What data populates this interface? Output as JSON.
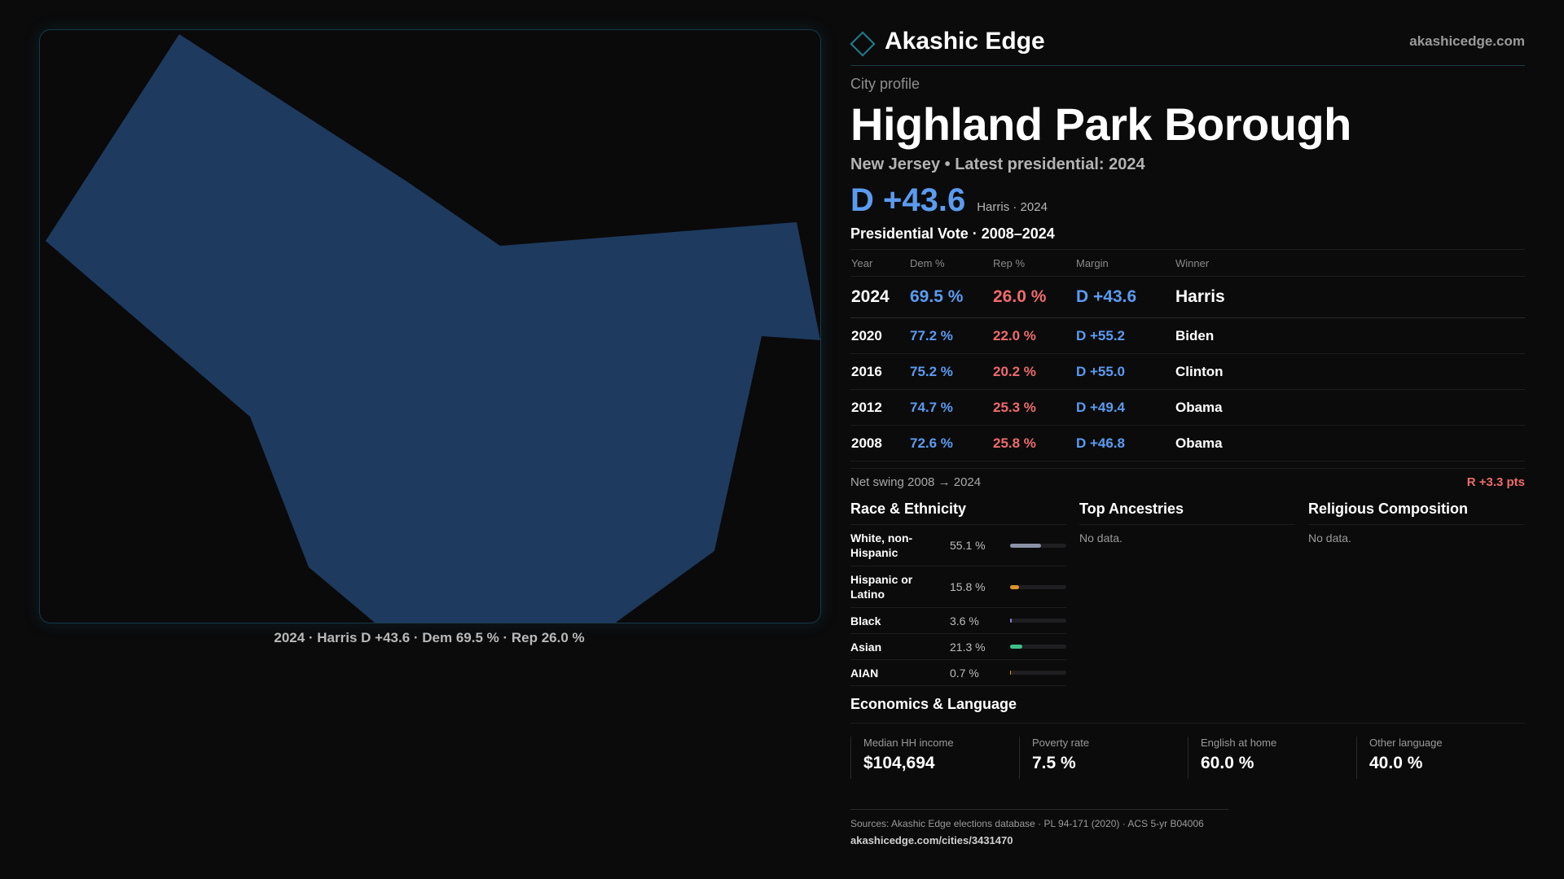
{
  "map": {
    "fill_color": "#1e3a5f",
    "caption": "2024 · Harris D +43.6 · Dem 69.5 % · Rep 26.0 %"
  },
  "brand": {
    "name": "Akashic Edge",
    "url": "akashicedge.com",
    "accent": "#1e7f8f"
  },
  "profile": {
    "kicker": "City profile",
    "title": "Highland Park Borough",
    "subtitle": "New Jersey • Latest presidential: 2024",
    "margin": "D +43.6",
    "margin_note": "Harris · 2024"
  },
  "votes": {
    "title": "Presidential Vote · 2008–2024",
    "headers": {
      "year": "Year",
      "dem": "Dem %",
      "rep": "Rep %",
      "margin": "Margin",
      "winner": "Winner"
    },
    "rows": [
      {
        "year": "2024",
        "dem": "69.5 %",
        "rep": "26.0 %",
        "margin": "D +43.6",
        "winner": "Harris"
      },
      {
        "year": "2020",
        "dem": "77.2 %",
        "rep": "22.0 %",
        "margin": "D +55.2",
        "winner": "Biden"
      },
      {
        "year": "2016",
        "dem": "75.2 %",
        "rep": "20.2 %",
        "margin": "D +55.0",
        "winner": "Clinton"
      },
      {
        "year": "2012",
        "dem": "74.7 %",
        "rep": "25.3 %",
        "margin": "D +49.4",
        "winner": "Obama"
      },
      {
        "year": "2008",
        "dem": "72.6 %",
        "rep": "25.8 %",
        "margin": "D +46.8",
        "winner": "Obama"
      }
    ],
    "swing_label": "Net swing 2008 → 2024",
    "swing_value": "R +3.3 pts"
  },
  "race": {
    "title": "Race & Ethnicity",
    "rows": [
      {
        "label": "White, non-Hispanic",
        "pct": "55.1 %",
        "share": 0.551,
        "color": "#8a93a6"
      },
      {
        "label": "Hispanic or Latino",
        "pct": "15.8 %",
        "share": 0.158,
        "color": "#e0942a"
      },
      {
        "label": "Black",
        "pct": "3.6 %",
        "share": 0.036,
        "color": "#8b7be0"
      },
      {
        "label": "Asian",
        "pct": "21.3 %",
        "share": 0.213,
        "color": "#3cc08a"
      },
      {
        "label": "AIAN",
        "pct": "0.7 %",
        "share": 0.007,
        "color": "#e0942a"
      }
    ]
  },
  "ancestries": {
    "title": "Top Ancestries",
    "empty": "No data."
  },
  "religion": {
    "title": "Religious Composition",
    "empty": "No data."
  },
  "economics": {
    "title": "Economics & Language",
    "cells": [
      {
        "label": "Median HH income",
        "value": "$104,694"
      },
      {
        "label": "Poverty rate",
        "value": "7.5 %"
      },
      {
        "label": "English at home",
        "value": "60.0 %"
      },
      {
        "label": "Other language",
        "value": "40.0 %"
      }
    ]
  },
  "sources": {
    "text": "Sources: Akashic Edge elections database · PL 94-171 (2020) · ACS 5-yr B04006",
    "url": "akashicedge.com/cities/3431470"
  }
}
